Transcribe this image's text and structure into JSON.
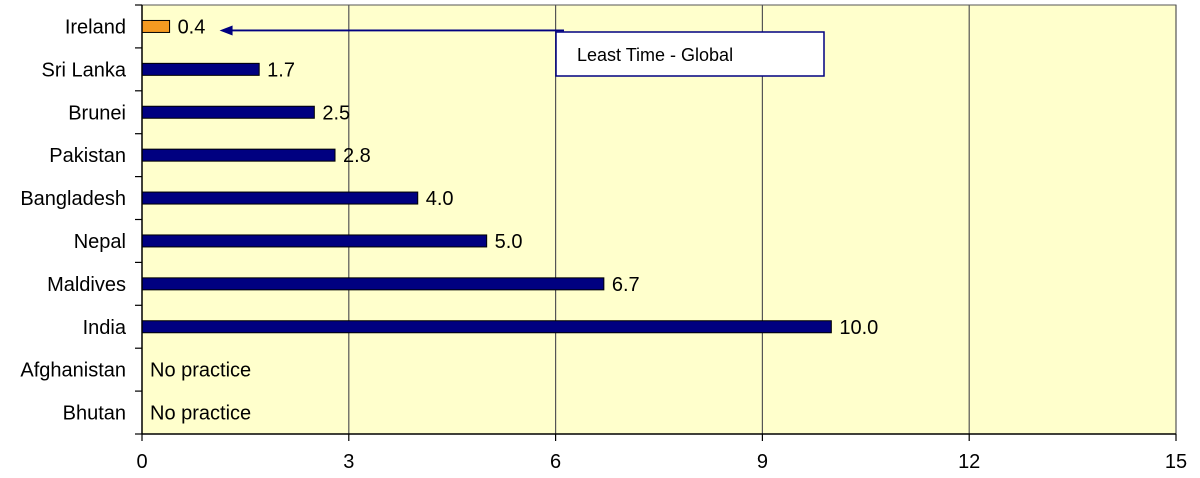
{
  "chart_data": {
    "type": "bar",
    "orientation": "horizontal",
    "categories": [
      "Ireland",
      "Sri Lanka",
      "Brunei",
      "Pakistan",
      "Bangladesh",
      "Nepal",
      "Maldives",
      "India",
      "Afghanistan",
      "Bhutan"
    ],
    "values": [
      0.4,
      1.7,
      2.5,
      2.8,
      4.0,
      5.0,
      6.7,
      10.0,
      null,
      null
    ],
    "value_labels": [
      "0.4",
      "1.7",
      "2.5",
      "2.8",
      "4.0",
      "5.0",
      "6.7",
      "10.0",
      "No practice",
      "No practice"
    ],
    "xlim": [
      0,
      15
    ],
    "xticks": [
      0,
      3,
      6,
      9,
      12,
      15
    ],
    "xtick_labels": [
      "0",
      "3",
      "6",
      "9",
      "12",
      "15"
    ],
    "grid": "vertical",
    "legend": "none",
    "colors": {
      "plot_background": "#ffffcc",
      "bar": "#000080",
      "highlight_bar": "#f59a21",
      "gridline": "#555555",
      "annotation_arrow": "#000080"
    },
    "highlight_category": "Ireland",
    "annotation": {
      "text": "Least Time - Global",
      "points_to": "Ireland"
    }
  }
}
